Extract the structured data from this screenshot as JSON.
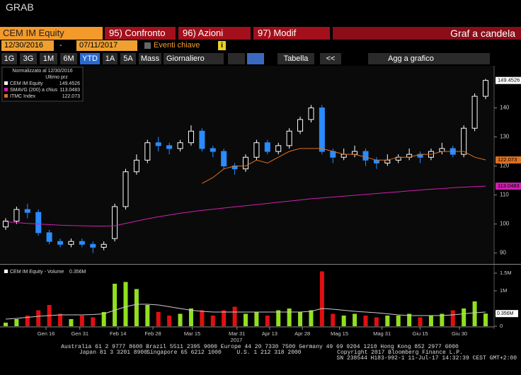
{
  "window_title": "GRAB",
  "toolbar": {
    "security": "CEM IM Equity",
    "buttons": [
      "95) Confronto",
      "96) Azioni",
      "97) Modif"
    ],
    "function": "Graf a candela"
  },
  "range": {
    "start": "12/30/2016",
    "separator": "-",
    "end": "07/11/2017",
    "events": "Eventi chiave",
    "info": "i"
  },
  "periods": [
    "1G",
    "3G",
    "1M",
    "6M",
    "YTD",
    "1A",
    "5A",
    "Mass"
  ],
  "selected_period": "YTD",
  "frequency": "Giornaliero",
  "table": "Tabella",
  "nav": "<<",
  "add": "Agg a grafico",
  "chart_data": [
    {
      "type": "candlestick",
      "header": "Normalizzato al 12/30/2016",
      "subheader": "Ultimo prz",
      "name": "CEM IM Equity",
      "legend_color": "#ffffff",
      "up_color": "#ffffff",
      "down_color": "#2a8cff",
      "ylim": [
        86.5,
        154.5
      ],
      "yticks": [
        90,
        100,
        110,
        120,
        130,
        140
      ],
      "xticks": [
        {
          "value": 3.7,
          "label": "Gen 16"
        },
        {
          "value": 6.8,
          "label": "Gen 31"
        },
        {
          "value": 10.3,
          "label": "Feb 14"
        },
        {
          "value": 13.5,
          "label": "Feb 28"
        },
        {
          "value": 17.1,
          "label": "Mar 15"
        },
        {
          "value": 21.2,
          "label": "Mar 31"
        },
        {
          "value": 24.2,
          "label": "Apr 13"
        },
        {
          "value": 27.2,
          "label": "Apr 28"
        },
        {
          "value": 30.6,
          "label": "Mag 15"
        },
        {
          "value": 34.5,
          "label": "Mag 31"
        },
        {
          "value": 38,
          "label": "Giu 15"
        },
        {
          "value": 41.6,
          "label": "Giu 30"
        }
      ],
      "year_label": "2017",
      "open": [
        99,
        101,
        105,
        104,
        97,
        94,
        93,
        94,
        93,
        92,
        95,
        106,
        118,
        122,
        128,
        127,
        126,
        128,
        132,
        126,
        125,
        120,
        119,
        123,
        128,
        125,
        127,
        132,
        136,
        140,
        125,
        123,
        124,
        125,
        122,
        121,
        122,
        123,
        124,
        123,
        125,
        126,
        124,
        133,
        144
      ],
      "high": [
        102,
        106,
        107,
        105,
        98,
        95,
        95,
        95,
        94,
        94,
        107,
        119,
        124,
        129,
        130,
        128,
        129,
        134,
        133,
        127,
        126,
        121,
        124,
        129,
        129,
        128,
        133,
        137,
        141,
        141,
        126,
        126,
        127,
        126,
        123,
        124,
        124,
        126,
        125,
        126,
        128,
        127,
        134,
        145,
        150
      ],
      "low": [
        98,
        100,
        102,
        96,
        93,
        92,
        92,
        92,
        90,
        91,
        94,
        105,
        117,
        121,
        125,
        124,
        125,
        127,
        125,
        123,
        119,
        117,
        118,
        122,
        124,
        124,
        126,
        131,
        135,
        124,
        121,
        122,
        123,
        120,
        119,
        120,
        121,
        122,
        121,
        122,
        124,
        123,
        123,
        132,
        143
      ],
      "close": [
        101,
        105,
        104,
        97,
        94,
        93,
        94,
        93,
        92,
        93,
        106,
        118,
        122,
        128,
        127,
        126,
        128,
        132,
        126,
        125,
        120,
        119,
        123,
        128,
        125,
        127,
        132,
        136,
        140,
        125,
        123,
        124,
        125,
        122,
        121,
        122,
        123,
        124,
        123,
        125,
        126,
        124,
        133,
        144,
        149.4526
      ],
      "series": [
        {
          "name": "SMAVG (200) a chius",
          "color": "#d020b0",
          "values": [
            100.8,
            100.5,
            100.2,
            100,
            99.8,
            99.6,
            99.5,
            99.4,
            99.3,
            99.3,
            99.4,
            100.2,
            101,
            101.8,
            102.5,
            103.1,
            103.7,
            104.2,
            104.7,
            105.1,
            105.5,
            105.9,
            106.3,
            106.7,
            107.1,
            107.5,
            107.9,
            108.3,
            108.7,
            109,
            109.3,
            109.6,
            109.9,
            110.2,
            110.5,
            110.8,
            111.1,
            111.4,
            111.7,
            112,
            112.2,
            112.5,
            112.7,
            112.9,
            113.0483
          ]
        },
        {
          "name": "ITMC Index",
          "color": "#e07020",
          "values": [
            null,
            null,
            null,
            null,
            null,
            null,
            null,
            null,
            null,
            null,
            null,
            null,
            null,
            null,
            null,
            null,
            null,
            null,
            114,
            116,
            119,
            120,
            120,
            122,
            121,
            123,
            125,
            126,
            126,
            126,
            125,
            124,
            124,
            123,
            122,
            122,
            123,
            123,
            124,
            124,
            125,
            125,
            125,
            123,
            122.073
          ]
        }
      ]
    },
    {
      "type": "bar",
      "title": "CEM IM Equity - Volume",
      "last_label": "0.356M",
      "up_color": "#90e020",
      "down_color": "#e01010",
      "ylim": [
        0,
        1.7
      ],
      "yticks": [
        0,
        {
          "value": 1,
          "label": "1M"
        },
        {
          "value": 1.5,
          "label": "1.5M"
        }
      ],
      "values": [
        0.1,
        0.2,
        0.3,
        0.45,
        0.6,
        0.35,
        0.2,
        0.3,
        0.25,
        0.4,
        1.2,
        1.25,
        1.05,
        0.6,
        0.4,
        0.3,
        0.35,
        0.5,
        0.45,
        0.3,
        0.45,
        0.55,
        0.35,
        0.4,
        0.3,
        0.45,
        0.5,
        0.4,
        0.45,
        1.55,
        0.35,
        0.3,
        0.35,
        0.3,
        0.25,
        0.3,
        0.3,
        0.35,
        0.25,
        0.3,
        0.35,
        0.45,
        0.5,
        0.7,
        0.356
      ],
      "ma_color": "#cccccc",
      "ma": [
        0.2,
        0.22,
        0.25,
        0.28,
        0.3,
        0.32,
        0.32,
        0.32,
        0.33,
        0.35,
        0.45,
        0.55,
        0.62,
        0.62,
        0.6,
        0.55,
        0.5,
        0.45,
        0.42,
        0.4,
        0.4,
        0.4,
        0.4,
        0.4,
        0.4,
        0.4,
        0.4,
        0.4,
        0.42,
        0.5,
        0.48,
        0.45,
        0.42,
        0.4,
        0.38,
        0.35,
        0.32,
        0.3,
        0.3,
        0.3,
        0.3,
        0.32,
        0.35,
        0.38,
        0.4
      ]
    }
  ],
  "footer": {
    "line1": "Australia 61 2 9777 8600 Brazil 5511 2395 9000 Europe 44 20 7330 7500 Germany 49 69 9204 1210 Hong Kong 852 2977 6000",
    "line2": [
      "Japan 81 3 3201 8900",
      "Singapore 65 6212 1000",
      "U.S. 1 212 318 2000",
      "Copyright 2017 Bloomberg Finance L.P."
    ],
    "line3": "SN 238544 H183-992-1 11-Jul-17 14:32:39 CEST GMT+2:00"
  }
}
